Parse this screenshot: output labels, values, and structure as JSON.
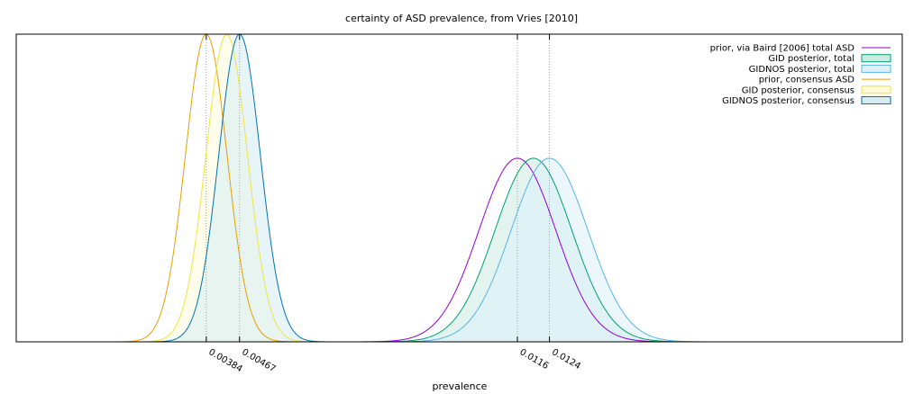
{
  "chart_data": {
    "type": "area",
    "title": "certainty of ASD prevalence, from Vries [2010]",
    "xlabel": "prevalence",
    "ylabel": "",
    "xlim": [
      -0.0009,
      0.0212
    ],
    "ylim": [
      0,
      1.0
    ],
    "grid": false,
    "legend_position": "top-right",
    "x_tick_labels": [
      "0.00384",
      "0.00467",
      "0.0116",
      "0.0124"
    ],
    "x_ticks": [
      0.00384,
      0.00467,
      0.0116,
      0.0124
    ],
    "series": [
      {
        "name": "prior, via Baird [2006] total ASD",
        "style": "line",
        "color": "#9400d3",
        "mean": 0.0116,
        "sd": 0.00096,
        "peak": 0.597
      },
      {
        "name": "GID posterior, total",
        "style": "filled",
        "color": "#009e73",
        "fill": "#ccebe2",
        "mean": 0.012,
        "sd": 0.00096,
        "peak": 0.597
      },
      {
        "name": "GIDNOS posterior, total",
        "style": "filled",
        "color": "#56b4e9",
        "fill": "#ddf0fa",
        "mean": 0.0124,
        "sd": 0.00096,
        "peak": 0.597
      },
      {
        "name": "prior, consensus ASD",
        "style": "line",
        "color": "#e69f00",
        "mean": 0.00384,
        "sd": 0.00052,
        "peak": 1.0
      },
      {
        "name": "GID posterior, consensus",
        "style": "filled",
        "color": "#f0e442",
        "fill": "#fdf9d9",
        "mean": 0.00435,
        "sd": 0.00052,
        "peak": 1.0
      },
      {
        "name": "GIDNOS posterior, consensus",
        "style": "filled",
        "color": "#0072b2",
        "fill": "#d6ecf3",
        "mean": 0.00467,
        "sd": 0.00052,
        "peak": 1.0
      }
    ]
  }
}
